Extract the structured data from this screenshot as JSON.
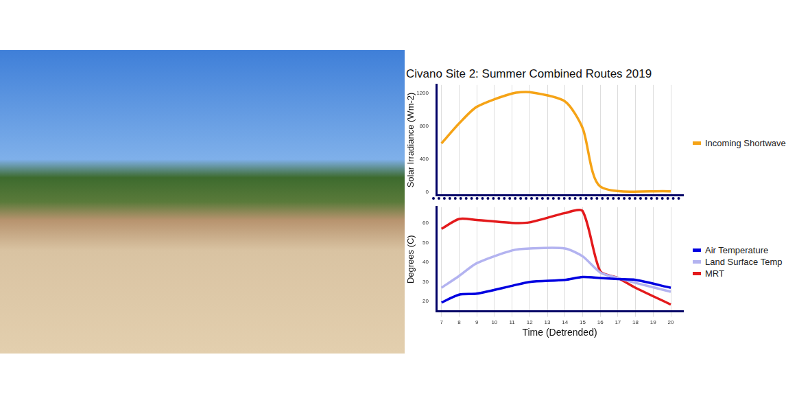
{
  "chart_data": [
    {
      "type": "line",
      "title": "Civano Site 2: Summer Combined Routes 2019",
      "y_label": "Solar Irradiance (Wm-2)",
      "x": [
        7,
        8,
        9,
        11,
        12,
        14,
        15,
        16,
        20
      ],
      "series": [
        {
          "name": "Incoming Shortwave",
          "color": "#f5a316",
          "values": [
            590,
            832,
            1034,
            1196,
            1212,
            1100,
            776,
            65,
            5
          ]
        }
      ],
      "xlim": [
        6.7,
        20.7
      ],
      "xticks": [
        7,
        8,
        9,
        10,
        11,
        12,
        13,
        14,
        15,
        16,
        17,
        18,
        19,
        20
      ],
      "ylim": [
        -40,
        1300
      ],
      "yticks": [
        0,
        400,
        800,
        1200
      ],
      "grid": true,
      "tick_labels": "y"
    },
    {
      "type": "line",
      "x_label": "Time (Detrended)",
      "y_label": "Degrees (C)",
      "x": [
        7,
        8,
        9,
        11,
        12,
        14,
        15,
        16,
        17,
        18,
        20
      ],
      "series": [
        {
          "name": "Air Temperature",
          "color": "#0000e0",
          "values": [
            19.5,
            23.5,
            24,
            28,
            30,
            31,
            32.5,
            32,
            31.4,
            31,
            27
          ]
        },
        {
          "name": "Land Surface Temp",
          "color": "#b3b3f0",
          "values": [
            27,
            33,
            39.5,
            46,
            47,
            47,
            43,
            34.8,
            32,
            29.5,
            25
          ]
        },
        {
          "name": "MRT",
          "color": "#e31a1c",
          "values": [
            57,
            62,
            61.5,
            60,
            60.3,
            65,
            66,
            35.4,
            32,
            27,
            18.5
          ]
        }
      ],
      "xlim": [
        6.7,
        20.7
      ],
      "xticks": [
        7,
        8,
        9,
        10,
        11,
        12,
        13,
        14,
        15,
        16,
        17,
        18,
        19,
        20
      ],
      "ylim": [
        15,
        68
      ],
      "yticks": [
        20,
        30,
        40,
        50,
        60
      ],
      "grid": true
    }
  ]
}
